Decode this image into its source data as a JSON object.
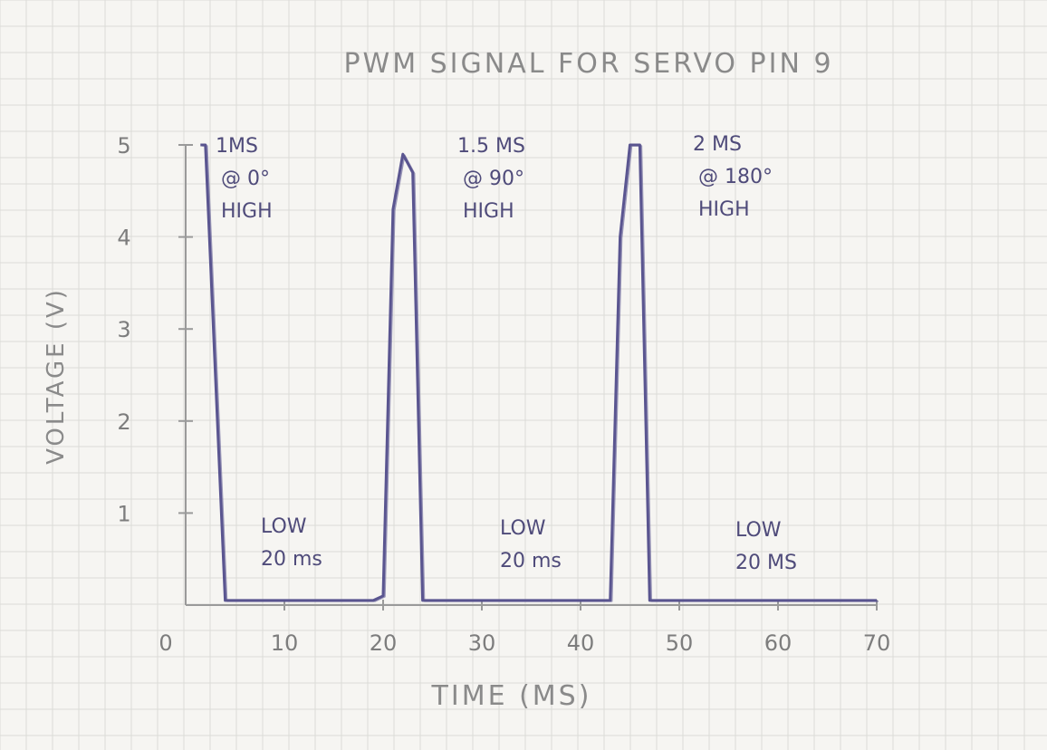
{
  "chart_data": {
    "type": "line",
    "title": "PWM SIGNAL FOR SERVO PIN 9",
    "xlabel": "TIME (MS)",
    "ylabel": "VOLTAGE (V)",
    "xlim": [
      0,
      70
    ],
    "ylim": [
      0,
      5
    ],
    "x_ticks": [
      "0",
      "10",
      "20",
      "30",
      "40",
      "50",
      "60",
      "70"
    ],
    "y_ticks": [
      "1",
      "2",
      "3",
      "4",
      "5"
    ],
    "grid": true,
    "series": [
      {
        "x": [
          1.5,
          2,
          4,
          19,
          20,
          21,
          22,
          23,
          24,
          40,
          41,
          43,
          44,
          45,
          46,
          47,
          57,
          70
        ],
        "y": [
          5,
          5,
          0.05,
          0.05,
          0.1,
          4.3,
          4.9,
          4.7,
          0.05,
          0.05,
          0.05,
          0.05,
          4.0,
          5,
          5,
          0.05,
          0.05,
          0.05
        ]
      }
    ],
    "annotations": [
      {
        "lines": [
          "1MS",
          "@ 0°",
          "HIGH"
        ]
      },
      {
        "lines": [
          "1.5 MS",
          "@ 90°",
          "HIGH"
        ]
      },
      {
        "lines": [
          "2 MS",
          "@ 180°",
          "HIGH"
        ]
      },
      {
        "lines": [
          "LOW",
          "20 ms"
        ]
      },
      {
        "lines": [
          "LOW",
          "20 ms"
        ]
      },
      {
        "lines": [
          "LOW",
          "20 MS"
        ]
      }
    ],
    "colors": {
      "signal": "#5a5590",
      "axis": "#9a9a9a",
      "grid": "#dcdcd8",
      "annotation": "#4f4b7a"
    }
  }
}
